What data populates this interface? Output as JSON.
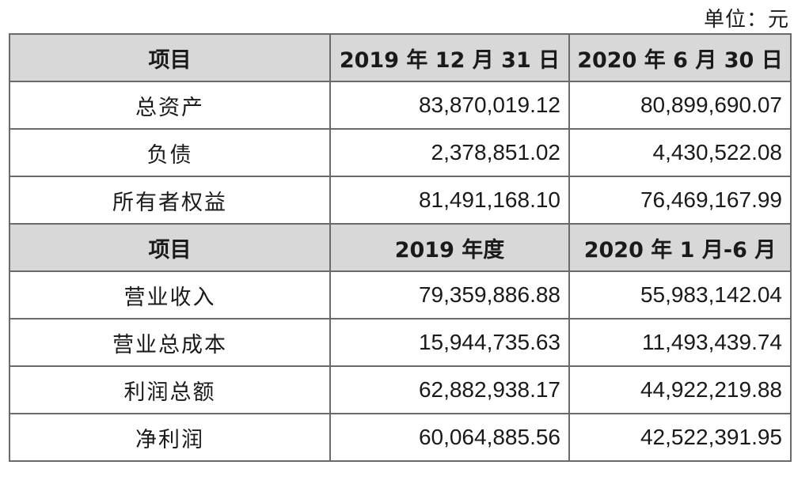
{
  "unit_label": "单位：元",
  "section1": {
    "headers": [
      "项目",
      "2019 年 12 月 31 日",
      "2020 年 6 月 30 日"
    ],
    "rows": [
      {
        "item": "总资产",
        "v1": "83,870,019.12",
        "v2": "80,899,690.07"
      },
      {
        "item": "负债",
        "v1": "2,378,851.02",
        "v2": "4,430,522.08"
      },
      {
        "item": "所有者权益",
        "v1": "81,491,168.10",
        "v2": "76,469,167.99"
      }
    ]
  },
  "section2": {
    "headers": [
      "项目",
      "2019 年度",
      "2020 年 1 月-6 月"
    ],
    "rows": [
      {
        "item": "营业收入",
        "v1": "79,359,886.88",
        "v2": "55,983,142.04"
      },
      {
        "item": "营业总成本",
        "v1": "15,944,735.63",
        "v2": "11,493,439.74"
      },
      {
        "item": "利润总额",
        "v1": "62,882,938.17",
        "v2": "44,922,219.88"
      },
      {
        "item": "净利润",
        "v1": "60,064,885.56",
        "v2": "42,522,391.95"
      }
    ]
  }
}
